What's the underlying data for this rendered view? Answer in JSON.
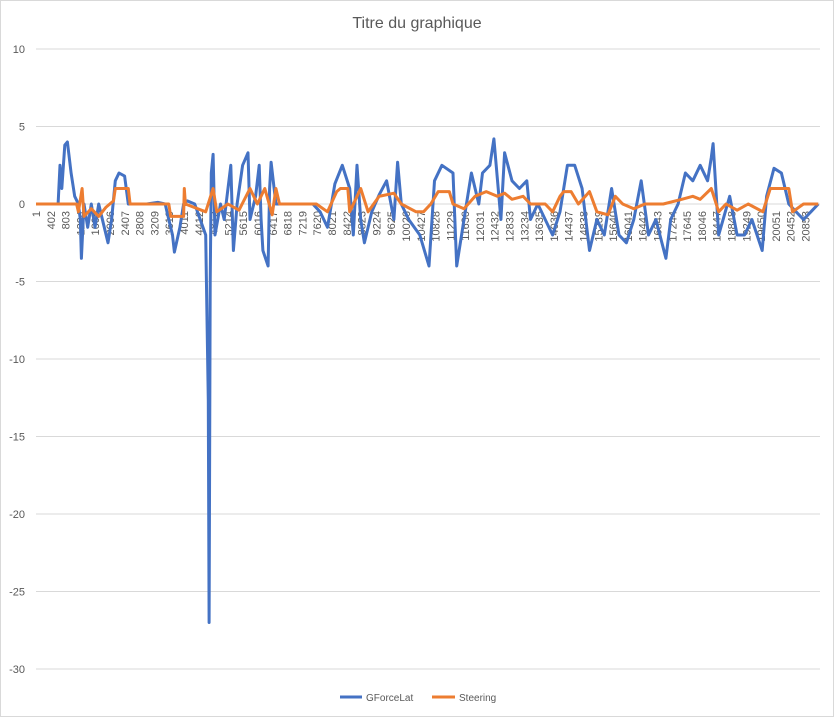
{
  "chart_data": {
    "type": "line",
    "title": "Titre du graphique",
    "xlabel": "",
    "ylabel": "",
    "ylim": [
      -30,
      10
    ],
    "xlim": [
      1,
      21200
    ],
    "y_ticks": [
      10,
      5,
      0,
      -5,
      -10,
      -15,
      -20,
      -25,
      -30
    ],
    "x_tick_labels": [
      "1",
      "402",
      "803",
      "1204",
      "1605",
      "2006",
      "2407",
      "2808",
      "3209",
      "3610",
      "4011",
      "4412",
      "4813",
      "5214",
      "5615",
      "6016",
      "6417",
      "6818",
      "7219",
      "7620",
      "8021",
      "8422",
      "8823",
      "9224",
      "9625",
      "10026",
      "10427",
      "10828",
      "11229",
      "11630",
      "12031",
      "12432",
      "12833",
      "13234",
      "13635",
      "14036",
      "14437",
      "14838",
      "15239",
      "15640",
      "16041",
      "16442",
      "16843",
      "17244",
      "17645",
      "18046",
      "18447",
      "18848",
      "19249",
      "19650",
      "20051",
      "20452",
      "20853"
    ],
    "grid": true,
    "legend_position": "bottom",
    "series": [
      {
        "name": "GForceLat",
        "color": "#4472C4",
        "points": [
          [
            0,
            0
          ],
          [
            600,
            0
          ],
          [
            650,
            2.5
          ],
          [
            700,
            1
          ],
          [
            780,
            3.8
          ],
          [
            850,
            4
          ],
          [
            950,
            2
          ],
          [
            1050,
            0.5
          ],
          [
            1150,
            0
          ],
          [
            1200,
            -1
          ],
          [
            1230,
            -3.5
          ],
          [
            1300,
            0
          ],
          [
            1400,
            -1.5
          ],
          [
            1500,
            0
          ],
          [
            1600,
            -1.5
          ],
          [
            1700,
            0
          ],
          [
            1800,
            -1
          ],
          [
            1950,
            -2.5
          ],
          [
            2050,
            -1
          ],
          [
            2150,
            1.5
          ],
          [
            2250,
            2
          ],
          [
            2400,
            1.8
          ],
          [
            2500,
            0
          ],
          [
            3000,
            0
          ],
          [
            3300,
            0.1
          ],
          [
            3500,
            0
          ],
          [
            3600,
            -1
          ],
          [
            3700,
            -2
          ],
          [
            3750,
            -3.1
          ],
          [
            3900,
            -1.5
          ],
          [
            4000,
            0
          ],
          [
            4100,
            0.2
          ],
          [
            4300,
            0
          ],
          [
            4450,
            -1
          ],
          [
            4600,
            -2
          ],
          [
            4670,
            -12.7
          ],
          [
            4690,
            -27
          ],
          [
            4720,
            -5
          ],
          [
            4750,
            2
          ],
          [
            4800,
            3.2
          ],
          [
            4850,
            -2
          ],
          [
            5000,
            0
          ],
          [
            5100,
            -1
          ],
          [
            5280,
            2.5
          ],
          [
            5350,
            -3
          ],
          [
            5450,
            0
          ],
          [
            5600,
            2.5
          ],
          [
            5745,
            3.3
          ],
          [
            5800,
            -1
          ],
          [
            5950,
            0.5
          ],
          [
            6050,
            2.5
          ],
          [
            6100,
            -1
          ],
          [
            6150,
            -3
          ],
          [
            6290,
            -4
          ],
          [
            6330,
            1
          ],
          [
            6370,
            2.7
          ],
          [
            6500,
            0
          ],
          [
            6800,
            0
          ],
          [
            7500,
            0
          ],
          [
            7700,
            -0.5
          ],
          [
            7900,
            -1.5
          ],
          [
            8100,
            1.3
          ],
          [
            8300,
            2.5
          ],
          [
            8500,
            1
          ],
          [
            8600,
            -2
          ],
          [
            8700,
            2.5
          ],
          [
            8800,
            -1
          ],
          [
            8900,
            -2.5
          ],
          [
            9100,
            -0.5
          ],
          [
            9300,
            0.6
          ],
          [
            9500,
            1.5
          ],
          [
            9700,
            -1
          ],
          [
            9800,
            2.7
          ],
          [
            9900,
            0
          ],
          [
            10100,
            -1
          ],
          [
            10400,
            -2
          ],
          [
            10650,
            -4
          ],
          [
            10800,
            1.5
          ],
          [
            11000,
            2.5
          ],
          [
            11300,
            2
          ],
          [
            11400,
            -4
          ],
          [
            11600,
            -1
          ],
          [
            11800,
            2
          ],
          [
            12000,
            0
          ],
          [
            12100,
            2
          ],
          [
            12300,
            2.5
          ],
          [
            12410,
            4.2
          ],
          [
            12600,
            -1
          ],
          [
            12700,
            3.3
          ],
          [
            12900,
            1.5
          ],
          [
            13100,
            1
          ],
          [
            13300,
            1.5
          ],
          [
            13400,
            -1
          ],
          [
            13600,
            0
          ],
          [
            13800,
            -1
          ],
          [
            14000,
            -2
          ],
          [
            14200,
            -0.5
          ],
          [
            14400,
            2.5
          ],
          [
            14600,
            2.5
          ],
          [
            14800,
            1
          ],
          [
            15000,
            -3
          ],
          [
            15200,
            -1
          ],
          [
            15400,
            -2
          ],
          [
            15600,
            1
          ],
          [
            15800,
            -2
          ],
          [
            16000,
            -2.5
          ],
          [
            16200,
            -1
          ],
          [
            16400,
            1.5
          ],
          [
            16600,
            -2
          ],
          [
            16800,
            -1
          ],
          [
            17070,
            -3.5
          ],
          [
            17200,
            -1
          ],
          [
            17400,
            0
          ],
          [
            17600,
            2
          ],
          [
            17800,
            1.5
          ],
          [
            18000,
            2.5
          ],
          [
            18200,
            1.5
          ],
          [
            18300,
            3
          ],
          [
            18350,
            3.9
          ],
          [
            18500,
            -2
          ],
          [
            18800,
            0.5
          ],
          [
            19000,
            -2
          ],
          [
            19200,
            -2
          ],
          [
            19400,
            -1
          ],
          [
            19680,
            -3
          ],
          [
            19800,
            0.5
          ],
          [
            20000,
            2.3
          ],
          [
            20200,
            2
          ],
          [
            20400,
            0
          ],
          [
            20600,
            -0.5
          ],
          [
            20800,
            -1
          ],
          [
            21000,
            -0.5
          ],
          [
            21200,
            0
          ]
        ]
      },
      {
        "name": "Steering",
        "color": "#ED7D31",
        "points": [
          [
            0,
            0
          ],
          [
            1100,
            0
          ],
          [
            1150,
            -0.5
          ],
          [
            1250,
            1
          ],
          [
            1300,
            -0.8
          ],
          [
            1500,
            -0.3
          ],
          [
            1700,
            -0.8
          ],
          [
            1900,
            -0.2
          ],
          [
            2100,
            0.2
          ],
          [
            2150,
            1
          ],
          [
            2500,
            1
          ],
          [
            2550,
            0
          ],
          [
            3600,
            0
          ],
          [
            3650,
            -0.8
          ],
          [
            4000,
            -0.8
          ],
          [
            4020,
            1
          ],
          [
            4050,
            0
          ],
          [
            4600,
            -0.5
          ],
          [
            4800,
            1
          ],
          [
            4900,
            -0.5
          ],
          [
            5200,
            0
          ],
          [
            5500,
            -0.4
          ],
          [
            5800,
            1
          ],
          [
            6000,
            0
          ],
          [
            6200,
            1
          ],
          [
            6400,
            -0.7
          ],
          [
            6500,
            1
          ],
          [
            6600,
            0
          ],
          [
            7600,
            0
          ],
          [
            7900,
            -0.5
          ],
          [
            8150,
            0.8
          ],
          [
            8250,
            1
          ],
          [
            8450,
            1
          ],
          [
            8500,
            -0.5
          ],
          [
            8800,
            1
          ],
          [
            9000,
            -0.5
          ],
          [
            9300,
            0.5
          ],
          [
            9700,
            0.7
          ],
          [
            9900,
            0
          ],
          [
            10300,
            -0.5
          ],
          [
            10500,
            -0.5
          ],
          [
            10700,
            0
          ],
          [
            10900,
            0.8
          ],
          [
            11200,
            0.8
          ],
          [
            11300,
            0
          ],
          [
            11600,
            -0.3
          ],
          [
            11900,
            0.5
          ],
          [
            12200,
            0.8
          ],
          [
            12500,
            0.5
          ],
          [
            12700,
            0.7
          ],
          [
            12900,
            0.3
          ],
          [
            13200,
            0.5
          ],
          [
            13400,
            0
          ],
          [
            13800,
            0
          ],
          [
            14000,
            -0.5
          ],
          [
            14200,
            0.5
          ],
          [
            14300,
            0.8
          ],
          [
            14500,
            0.8
          ],
          [
            14700,
            0
          ],
          [
            15000,
            0.8
          ],
          [
            15200,
            -0.5
          ],
          [
            15500,
            -0.7
          ],
          [
            15700,
            0.5
          ],
          [
            15900,
            0
          ],
          [
            16200,
            -0.3
          ],
          [
            16500,
            0
          ],
          [
            17000,
            0
          ],
          [
            17500,
            0.3
          ],
          [
            17800,
            0.5
          ],
          [
            18000,
            0.3
          ],
          [
            18300,
            1
          ],
          [
            18500,
            -0.5
          ],
          [
            18700,
            0
          ],
          [
            19000,
            -0.4
          ],
          [
            19300,
            0
          ],
          [
            19700,
            -0.5
          ],
          [
            19900,
            1
          ],
          [
            20400,
            1
          ],
          [
            20500,
            -0.5
          ],
          [
            20800,
            0
          ],
          [
            21200,
            0
          ]
        ]
      }
    ]
  }
}
